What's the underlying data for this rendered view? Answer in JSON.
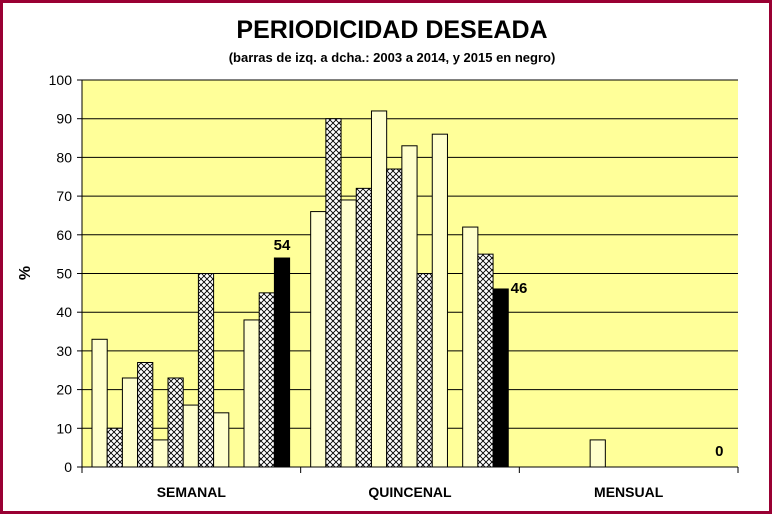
{
  "chart_data": {
    "type": "bar",
    "title": "PERIODICIDAD DESEADA",
    "subtitle": "(barras de izq. a dcha.: 2003 a 2014, y 2015 en negro)",
    "xlabel": "",
    "ylabel": "%",
    "ylim": [
      0,
      100
    ],
    "yticks": [
      0,
      10,
      20,
      30,
      40,
      50,
      60,
      70,
      80,
      90,
      100
    ],
    "grid": true,
    "legend": "none",
    "categories": [
      "SEMANAL",
      "QUINCENAL",
      "MENSUAL"
    ],
    "series": [
      {
        "values": [
          33,
          66,
          0
        ],
        "pattern": "plain"
      },
      {
        "values": [
          10,
          90,
          0
        ],
        "pattern": "hatched"
      },
      {
        "values": [
          23,
          69,
          0
        ],
        "pattern": "plain"
      },
      {
        "values": [
          27,
          72,
          0
        ],
        "pattern": "hatched"
      },
      {
        "values": [
          7,
          92,
          7
        ],
        "pattern": "plain"
      },
      {
        "values": [
          23,
          77,
          0
        ],
        "pattern": "hatched"
      },
      {
        "values": [
          16,
          83,
          0
        ],
        "pattern": "plain"
      },
      {
        "values": [
          50,
          50,
          0
        ],
        "pattern": "hatched"
      },
      {
        "values": [
          14,
          86,
          0
        ],
        "pattern": "plain"
      },
      {
        "values": [
          0,
          0,
          0
        ],
        "pattern": "hatched"
      },
      {
        "values": [
          38,
          62,
          0
        ],
        "pattern": "plain"
      },
      {
        "values": [
          45,
          55,
          0
        ],
        "pattern": "hatched"
      },
      {
        "values": [
          54,
          46,
          0
        ],
        "pattern": "solid"
      }
    ],
    "data_labels": [
      {
        "category": "SEMANAL",
        "series_index": 12,
        "text": "54"
      },
      {
        "category": "QUINCENAL",
        "series_index": 12,
        "text": "46"
      },
      {
        "category": "MENSUAL",
        "series_index": 12,
        "text": "0"
      }
    ],
    "colors": {
      "plot_background": "#ffff99",
      "bar_fill": "#ffffcc",
      "bar_stroke": "#000000",
      "solid_bar": "#000000",
      "frame_border": "#990033",
      "gridline": "#000000"
    }
  }
}
